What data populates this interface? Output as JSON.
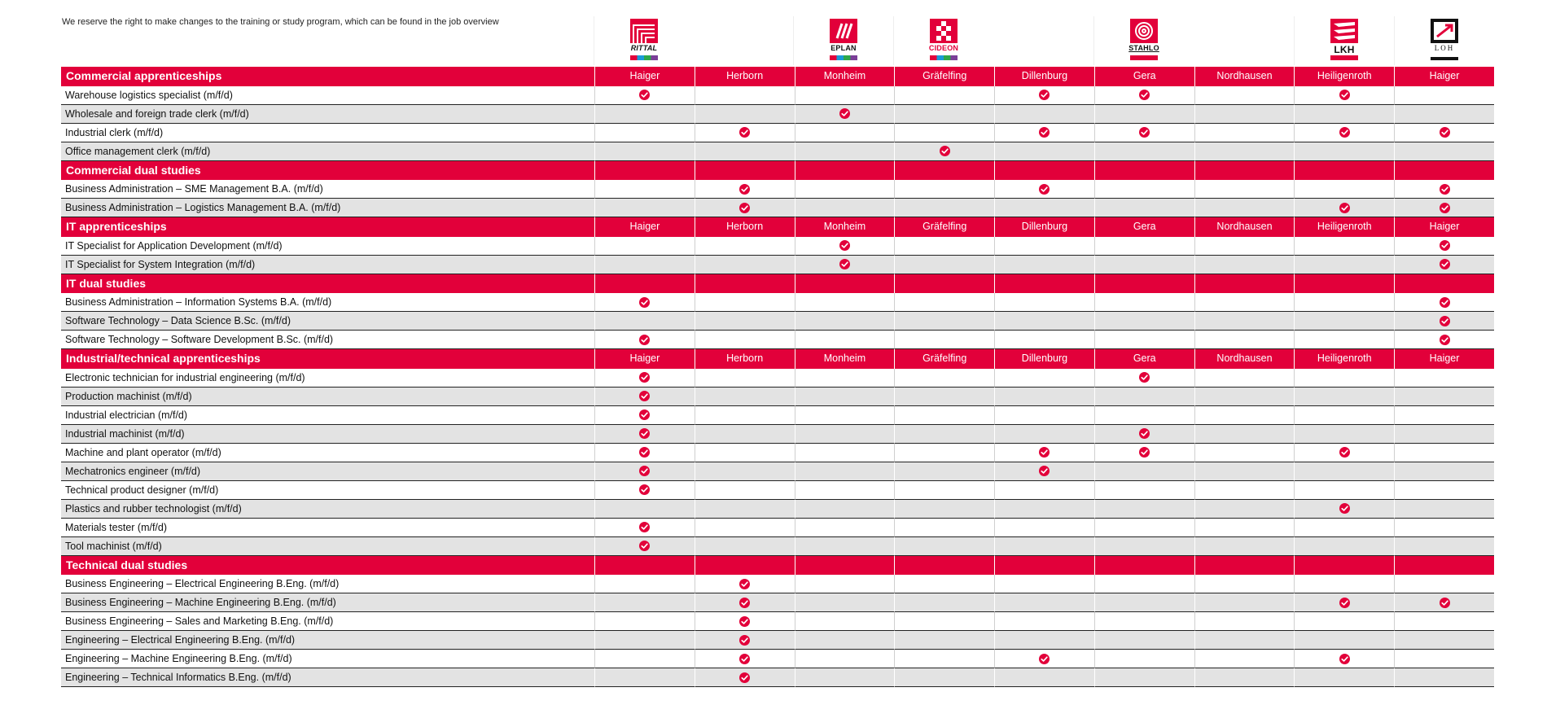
{
  "disclaimer": "We reserve the right to make changes to the training or study program, which can be found in the job overview",
  "brand_color": "#e2003a",
  "logos": [
    {
      "name": "RITTAL",
      "icon": "rittal-logo"
    },
    {
      "name": "EPLAN",
      "icon": "eplan-logo"
    },
    {
      "name": "CIDEON",
      "icon": "cideon-logo"
    },
    {
      "name": "STAHLO",
      "icon": "stahlo-logo"
    },
    {
      "name": "LKH",
      "icon": "lkh-logo"
    },
    {
      "name": "LOH",
      "icon": "loh-services-logo"
    }
  ],
  "locations": [
    "Haiger",
    "Herborn",
    "Monheim",
    "Gräfelfing",
    "Dillenburg",
    "Gera",
    "Nordhausen",
    "Heiligenroth",
    "Haiger"
  ],
  "sections": [
    {
      "title": "Commercial apprenticeships",
      "show_locations": true,
      "rows": [
        {
          "label": "Warehouse logistics specialist (m/f/d)",
          "checks": [
            1,
            0,
            0,
            0,
            1,
            1,
            0,
            1,
            0
          ]
        },
        {
          "label": "Wholesale and foreign trade clerk (m/f/d)",
          "checks": [
            0,
            0,
            1,
            0,
            0,
            0,
            0,
            0,
            0
          ]
        },
        {
          "label": "Industrial clerk (m/f/d)",
          "checks": [
            0,
            1,
            0,
            0,
            1,
            1,
            0,
            1,
            1
          ]
        },
        {
          "label": "Office management clerk (m/f/d)",
          "checks": [
            0,
            0,
            0,
            1,
            0,
            0,
            0,
            0,
            0
          ]
        }
      ]
    },
    {
      "title": "Commercial dual studies",
      "show_locations": false,
      "rows": [
        {
          "label": "Business Administration – SME Management B.A. (m/f/d)",
          "checks": [
            0,
            1,
            0,
            0,
            1,
            0,
            0,
            0,
            1
          ]
        },
        {
          "label": "Business Administration – Logistics Management B.A. (m/f/d)",
          "checks": [
            0,
            1,
            0,
            0,
            0,
            0,
            0,
            1,
            1
          ]
        }
      ]
    },
    {
      "title": "IT apprenticeships",
      "show_locations": true,
      "rows": [
        {
          "label": "IT Specialist for Application Development (m/f/d)",
          "checks": [
            0,
            0,
            1,
            0,
            0,
            0,
            0,
            0,
            1
          ]
        },
        {
          "label": "IT Specialist for System Integration (m/f/d)",
          "checks": [
            0,
            0,
            1,
            0,
            0,
            0,
            0,
            0,
            1
          ]
        }
      ]
    },
    {
      "title": "IT dual studies",
      "show_locations": false,
      "rows": [
        {
          "label": "Business Administration – Information Systems B.A. (m/f/d)",
          "checks": [
            1,
            0,
            0,
            0,
            0,
            0,
            0,
            0,
            1
          ]
        },
        {
          "label": "Software Technology – Data Science B.Sc. (m/f/d)",
          "checks": [
            0,
            0,
            0,
            0,
            0,
            0,
            0,
            0,
            1
          ]
        },
        {
          "label": "Software Technology – Software Development B.Sc. (m/f/d)",
          "checks": [
            1,
            0,
            0,
            0,
            0,
            0,
            0,
            0,
            1
          ]
        }
      ]
    },
    {
      "title": "Industrial/technical apprenticeships",
      "show_locations": true,
      "rows": [
        {
          "label": "Electronic technician for industrial engineering (m/f/d)",
          "checks": [
            1,
            0,
            0,
            0,
            0,
            1,
            0,
            0,
            0
          ]
        },
        {
          "label": "Production machinist (m/f/d)",
          "checks": [
            1,
            0,
            0,
            0,
            0,
            0,
            0,
            0,
            0
          ]
        },
        {
          "label": "Industrial electrician (m/f/d)",
          "checks": [
            1,
            0,
            0,
            0,
            0,
            0,
            0,
            0,
            0
          ]
        },
        {
          "label": "Industrial machinist (m/f/d)",
          "checks": [
            1,
            0,
            0,
            0,
            0,
            1,
            0,
            0,
            0
          ]
        },
        {
          "label": "Machine and plant operator (m/f/d)",
          "checks": [
            1,
            0,
            0,
            0,
            1,
            1,
            0,
            1,
            0
          ]
        },
        {
          "label": "Mechatronics engineer (m/f/d)",
          "checks": [
            1,
            0,
            0,
            0,
            1,
            0,
            0,
            0,
            0
          ]
        },
        {
          "label": "Technical product designer (m/f/d)",
          "checks": [
            1,
            0,
            0,
            0,
            0,
            0,
            0,
            0,
            0
          ]
        },
        {
          "label": "Plastics and rubber technologist (m/f/d)",
          "checks": [
            0,
            0,
            0,
            0,
            0,
            0,
            0,
            1,
            0
          ]
        },
        {
          "label": "Materials tester (m/f/d)",
          "checks": [
            1,
            0,
            0,
            0,
            0,
            0,
            0,
            0,
            0
          ]
        },
        {
          "label": "Tool machinist (m/f/d)",
          "checks": [
            1,
            0,
            0,
            0,
            0,
            0,
            0,
            0,
            0
          ]
        }
      ]
    },
    {
      "title": "Technical dual studies",
      "show_locations": false,
      "rows": [
        {
          "label": "Business Engineering – Electrical Engineering B.Eng. (m/f/d)",
          "checks": [
            0,
            1,
            0,
            0,
            0,
            0,
            0,
            0,
            0
          ]
        },
        {
          "label": "Business Engineering – Machine Engineering B.Eng. (m/f/d)",
          "checks": [
            0,
            1,
            0,
            0,
            0,
            0,
            0,
            1,
            1
          ]
        },
        {
          "label": "Business Engineering – Sales and Marketing B.Eng. (m/f/d)",
          "checks": [
            0,
            1,
            0,
            0,
            0,
            0,
            0,
            0,
            0
          ]
        },
        {
          "label": "Engineering – Electrical Engineering B.Eng. (m/f/d)",
          "checks": [
            0,
            1,
            0,
            0,
            0,
            0,
            0,
            0,
            0
          ]
        },
        {
          "label": "Engineering – Machine Engineering B.Eng. (m/f/d)",
          "checks": [
            0,
            1,
            0,
            0,
            1,
            0,
            0,
            1,
            0
          ]
        },
        {
          "label": "Engineering – Technical Informatics B.Eng. (m/f/d)",
          "checks": [
            0,
            1,
            0,
            0,
            0,
            0,
            0,
            0,
            0
          ]
        }
      ]
    }
  ]
}
